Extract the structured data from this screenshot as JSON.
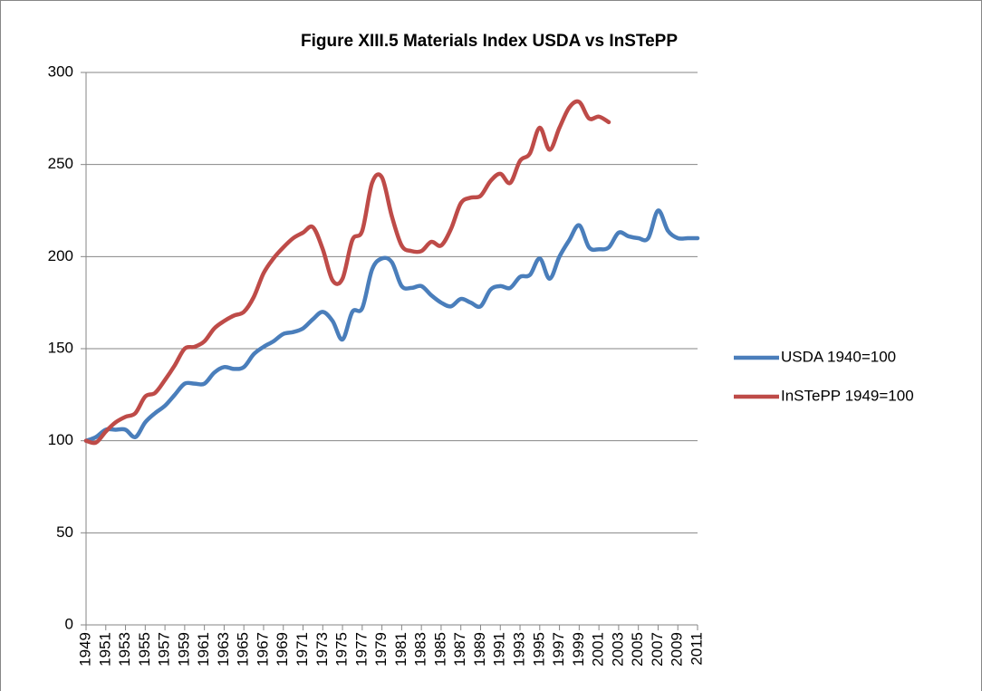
{
  "chart_data": {
    "type": "line",
    "title": "Figure XIII.5 Materials Index USDA vs InSTePP",
    "x": [
      1949,
      1950,
      1951,
      1952,
      1953,
      1954,
      1955,
      1956,
      1957,
      1958,
      1959,
      1960,
      1961,
      1962,
      1963,
      1964,
      1965,
      1966,
      1967,
      1968,
      1969,
      1970,
      1971,
      1972,
      1973,
      1974,
      1975,
      1976,
      1977,
      1978,
      1979,
      1980,
      1981,
      1982,
      1983,
      1984,
      1985,
      1986,
      1987,
      1988,
      1989,
      1990,
      1991,
      1992,
      1993,
      1994,
      1995,
      1996,
      1997,
      1998,
      1999,
      2000,
      2001,
      2002,
      2003,
      2004,
      2005,
      2006,
      2007,
      2008,
      2009,
      2010,
      2011
    ],
    "series": [
      {
        "name": "USDA 1940=100",
        "color": "#4a7ebb",
        "values": [
          100,
          102,
          106,
          106,
          106,
          102,
          110,
          115,
          119,
          125,
          131,
          131,
          131,
          137,
          140,
          139,
          140,
          147,
          151,
          154,
          158,
          159,
          161,
          166,
          170,
          165,
          155,
          170,
          172,
          193,
          199,
          197,
          184,
          183,
          184,
          179,
          175,
          173,
          177,
          175,
          173,
          182,
          184,
          183,
          189,
          190,
          199,
          188,
          200,
          209,
          217,
          205,
          204,
          205,
          213,
          211,
          210,
          210,
          225,
          214,
          210,
          210,
          210
        ]
      },
      {
        "name": "InSTePP 1949=100",
        "color": "#be4b48",
        "values": [
          100,
          99,
          105,
          110,
          113,
          115,
          124,
          126,
          133,
          141,
          150,
          151,
          154,
          161,
          165,
          168,
          170,
          178,
          191,
          199,
          205,
          210,
          213,
          216,
          204,
          187,
          188,
          209,
          214,
          240,
          243,
          222,
          206,
          203,
          203,
          208,
          206,
          215,
          229,
          232,
          233,
          241,
          245,
          240,
          252,
          256,
          270,
          258,
          270,
          281,
          284,
          275,
          276,
          273,
          null,
          null,
          null,
          null,
          null,
          null,
          null,
          null,
          null
        ]
      }
    ],
    "xlim": [
      1949,
      2011
    ],
    "xticks": [
      1949,
      1951,
      1953,
      1955,
      1957,
      1959,
      1961,
      1963,
      1965,
      1967,
      1969,
      1971,
      1973,
      1975,
      1977,
      1979,
      1981,
      1983,
      1985,
      1987,
      1989,
      1991,
      1993,
      1995,
      1997,
      1999,
      2001,
      2003,
      2005,
      2007,
      2009,
      2011
    ],
    "ylim": [
      0,
      300
    ],
    "yticks": [
      0,
      50,
      100,
      150,
      200,
      250,
      300
    ],
    "grid": true,
    "legend": "right"
  }
}
